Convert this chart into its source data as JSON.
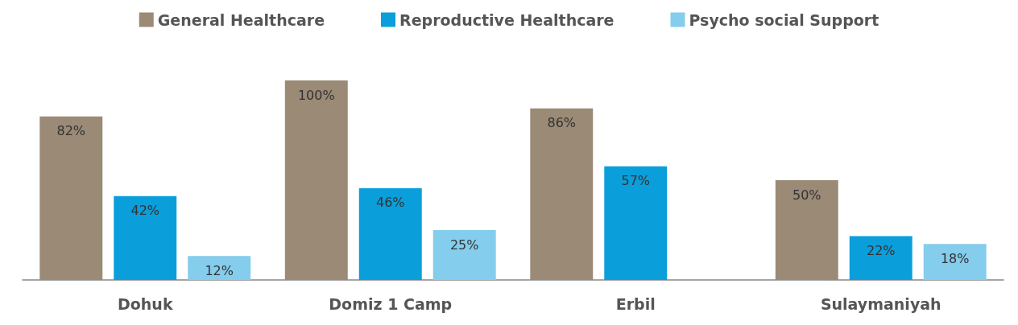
{
  "chart_data": {
    "type": "bar",
    "categories": [
      "Dohuk",
      "Domiz 1 Camp",
      "Erbil",
      "Sulaymaniyah"
    ],
    "series": [
      {
        "name": "General Healthcare",
        "color": "#9a8a76",
        "values": [
          82,
          100,
          86,
          50
        ],
        "value_labels": [
          "82%",
          "100%",
          "86%",
          "50%"
        ]
      },
      {
        "name": "Reproductive Healthcare",
        "color": "#0a9edb",
        "values": [
          42,
          46,
          57,
          22
        ],
        "value_labels": [
          "42%",
          "46%",
          "57%",
          "22%"
        ]
      },
      {
        "name": "Psycho social Support",
        "color": "#84cdec",
        "values": [
          12,
          25,
          null,
          18
        ],
        "value_labels": [
          "12%",
          "25%",
          null,
          "18%"
        ]
      }
    ],
    "legend": "top"
  }
}
